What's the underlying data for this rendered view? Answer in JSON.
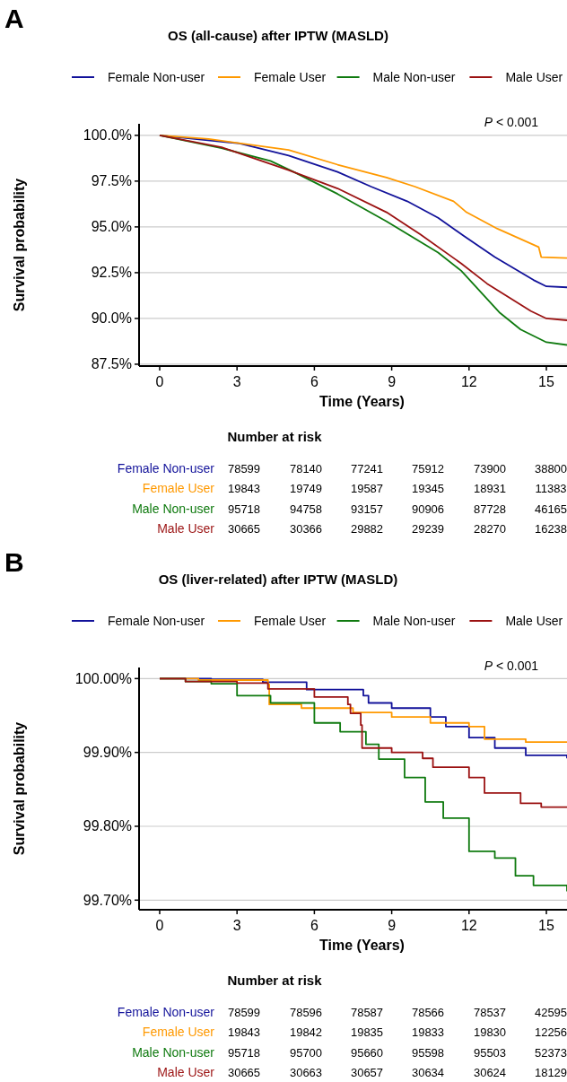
{
  "chart_data": [
    {
      "type": "line",
      "title": "OS (all-cause) after IPTW (MASLD)",
      "xlabel": "Time (Years)",
      "ylabel": "Survival probability",
      "legend": "top",
      "grid": "y",
      "xlim": [
        -0.8,
        15.8
      ],
      "xticks": [
        0,
        3,
        6,
        9,
        12,
        15
      ],
      "ylim": [
        87.4,
        100.63
      ],
      "yticks": [
        {
          "value": 87.5,
          "label": "87.5%"
        },
        {
          "value": 90,
          "label": "90.0%"
        },
        {
          "value": 92.5,
          "label": "92.5%"
        },
        {
          "value": 95,
          "label": "95.0%"
        },
        {
          "value": 97.5,
          "label": "97.5%"
        },
        {
          "value": 100,
          "label": "100.0%"
        }
      ],
      "series": [
        {
          "name": "Female Non-user",
          "color": "#12129a",
          "x": [
            0,
            3.1,
            5.0,
            6.9,
            8.2,
            9.6,
            10.8,
            11.8,
            13.0,
            14.5,
            15.0,
            15.8
          ],
          "values": [
            100,
            99.56,
            98.9,
            98.0,
            97.2,
            96.4,
            95.5,
            94.5,
            93.35,
            92.1,
            91.75,
            91.7
          ]
        },
        {
          "name": "Female User",
          "color": "#ff9900",
          "x": [
            0,
            1.9,
            5.0,
            6.9,
            8.8,
            9.9,
            11.4,
            11.9,
            13.1,
            14.7,
            14.8,
            15.8
          ],
          "values": [
            100,
            99.8,
            99.2,
            98.4,
            97.7,
            97.2,
            96.4,
            95.8,
            94.9,
            93.9,
            93.35,
            93.3
          ]
        },
        {
          "name": "Male Non-user",
          "color": "#0f7a0f",
          "x": [
            0,
            2.4,
            4.3,
            5.2,
            6.9,
            8.8,
            10.8,
            11.7,
            13.2,
            14.0,
            15.0,
            15.8
          ],
          "values": [
            100,
            99.3,
            98.6,
            98.0,
            96.8,
            95.3,
            93.6,
            92.6,
            90.3,
            89.4,
            88.7,
            88.55
          ]
        },
        {
          "name": "Male User",
          "color": "#9b1212",
          "x": [
            0,
            2.4,
            5.0,
            6.9,
            8.8,
            10.1,
            11.7,
            12.7,
            14.4,
            15.0,
            15.8
          ],
          "values": [
            100,
            99.35,
            98.1,
            97.1,
            95.8,
            94.6,
            93.0,
            91.9,
            90.4,
            90.0,
            89.9
          ]
        }
      ],
      "annotations": [
        "A",
        "P < 0.001",
        "Number at risk",
        "78599",
        "78140",
        "77241",
        "75912",
        "73900",
        "38800",
        "19843",
        "19749",
        "19587",
        "19345",
        "18931",
        "11383",
        "95718",
        "94758",
        "93157",
        "90906",
        "87728",
        "46165",
        "30665",
        "30366",
        "29882",
        "29239",
        "28270",
        "16238"
      ]
    },
    {
      "type": "step",
      "title": "OS (liver-related) after IPTW (MASLD)",
      "xlabel": "Time (Years)",
      "ylabel": "Survival probability",
      "legend": "top",
      "grid": "y",
      "xlim": [
        -0.8,
        15.8
      ],
      "xticks": [
        0,
        3,
        6,
        9,
        12,
        15
      ],
      "ylim": [
        99.687,
        100.015
      ],
      "yticks": [
        {
          "value": 99.7,
          "label": "99.70%"
        },
        {
          "value": 99.8,
          "label": "99.80%"
        },
        {
          "value": 99.9,
          "label": "99.90%"
        },
        {
          "value": 100,
          "label": "100.00%"
        }
      ],
      "series": [
        {
          "name": "Female Non-user",
          "color": "#12129a",
          "x": [
            0,
            2.0,
            4.0,
            5.7,
            7.9,
            8.1,
            9.0,
            10.5,
            11.1,
            12.0,
            13.0,
            14.2,
            15.8
          ],
          "values": [
            100,
            99.999,
            99.995,
            99.985,
            99.977,
            99.967,
            99.96,
            99.948,
            99.935,
            99.92,
            99.906,
            99.896,
            99.892
          ]
        },
        {
          "name": "Female User",
          "color": "#ff9900",
          "x": [
            0,
            1.5,
            4.2,
            4.25,
            5.5,
            7.5,
            9.0,
            10.5,
            12.0,
            12.6,
            14.2,
            15.8
          ],
          "values": [
            100,
            99.998,
            99.992,
            99.965,
            99.96,
            99.954,
            99.948,
            99.94,
            99.935,
            99.918,
            99.914,
            99.914
          ]
        },
        {
          "name": "Male Non-user",
          "color": "#0f7a0f",
          "x": [
            0,
            1,
            2.0,
            3.0,
            4.3,
            6.0,
            7.0,
            8.0,
            8.5,
            9.5,
            10.3,
            11.0,
            12.0,
            13.0,
            13.8,
            14.5,
            15.8
          ],
          "values": [
            100,
            99.996,
            99.993,
            99.977,
            99.967,
            99.94,
            99.928,
            99.911,
            99.891,
            99.866,
            99.833,
            99.811,
            99.766,
            99.757,
            99.733,
            99.72,
            99.712
          ]
        },
        {
          "name": "Male User",
          "color": "#9b1212",
          "x": [
            0,
            1,
            3,
            4.2,
            6.0,
            7.3,
            7.4,
            7.8,
            7.85,
            9.0,
            10.2,
            10.6,
            12.0,
            12.6,
            14.0,
            14.8,
            15.8
          ],
          "values": [
            100,
            99.996,
            99.994,
            99.986,
            99.975,
            99.965,
            99.953,
            99.937,
            99.906,
            99.9,
            99.892,
            99.88,
            99.866,
            99.845,
            99.831,
            99.826,
            99.826
          ]
        }
      ],
      "annotations": [
        "B",
        "P < 0.001",
        "Number at risk",
        "78599",
        "78596",
        "78587",
        "78566",
        "78537",
        "42595",
        "19843",
        "19842",
        "19835",
        "19833",
        "19830",
        "12256",
        "95718",
        "95700",
        "95660",
        "95598",
        "95503",
        "52373",
        "30665",
        "30663",
        "30657",
        "30634",
        "30624",
        "18129"
      ]
    }
  ]
}
